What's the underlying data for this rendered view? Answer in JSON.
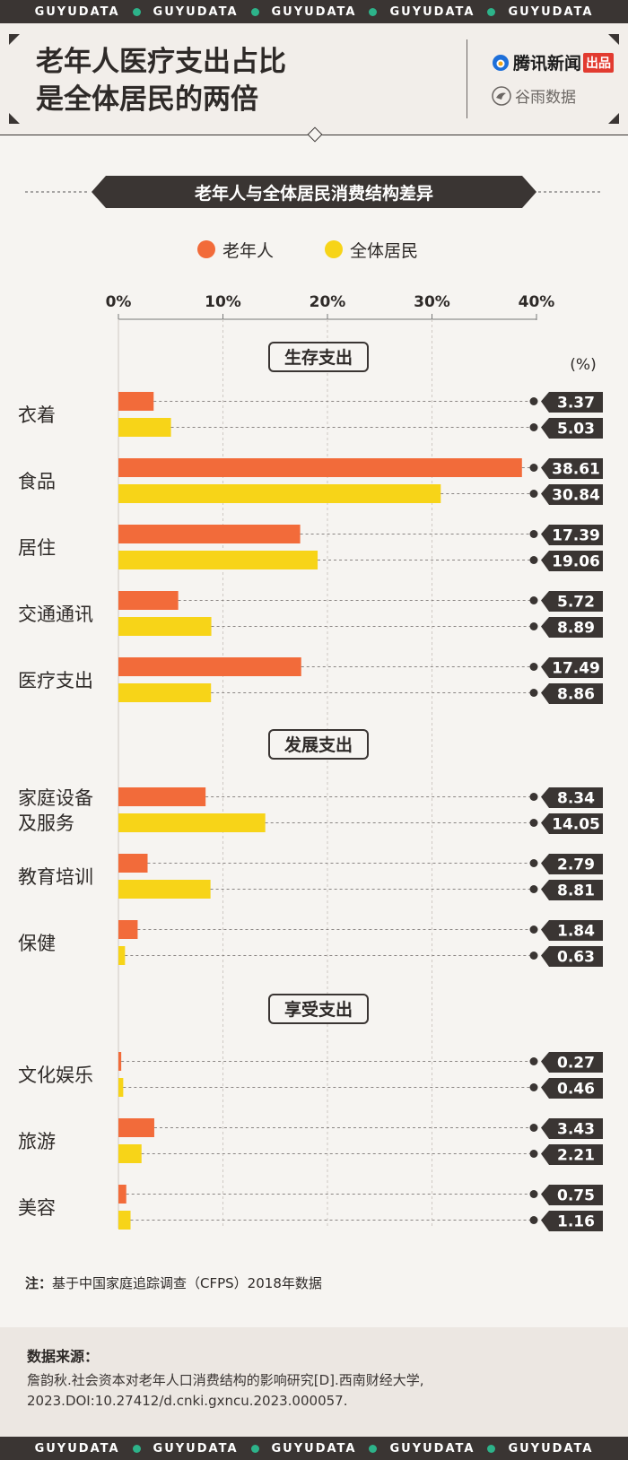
{
  "strip": {
    "word": "GUYUDATA"
  },
  "header": {
    "title_line1": "老年人医疗支出占比",
    "title_line2": "是全体居民的两倍",
    "brand_tencent": "腾讯新闻",
    "brand_tencent_tag": "出品",
    "brand_guyu": "谷雨数据"
  },
  "chart_data": {
    "type": "bar",
    "orientation": "horizontal",
    "title": "老年人与全体居民消费结构差异",
    "unit": "(%)",
    "xlim": [
      0,
      40
    ],
    "xticks": [
      "0%",
      "10%",
      "20%",
      "30%",
      "40%"
    ],
    "legend_placement": "top",
    "series": [
      {
        "name": "老年人",
        "color": "#f26b3a"
      },
      {
        "name": "全体居民",
        "color": "#f7d418"
      }
    ],
    "groups": [
      {
        "label": "生存支出",
        "categories": [
          {
            "label": "衣着",
            "elderly": 3.37,
            "all": 5.03
          },
          {
            "label": "食品",
            "elderly": 38.61,
            "all": 30.84
          },
          {
            "label": "居住",
            "elderly": 17.39,
            "all": 19.06
          },
          {
            "label": "交通通讯",
            "elderly": 5.72,
            "all": 8.89
          },
          {
            "label": "医疗支出",
            "elderly": 17.49,
            "all": 8.86
          }
        ]
      },
      {
        "label": "发展支出",
        "categories": [
          {
            "label": "家庭设备\n及服务",
            "elderly": 8.34,
            "all": 14.05
          },
          {
            "label": "教育培训",
            "elderly": 2.79,
            "all": 8.81
          },
          {
            "label": "保健",
            "elderly": 1.84,
            "all": 0.63
          }
        ]
      },
      {
        "label": "享受支出",
        "categories": [
          {
            "label": "文化娱乐",
            "elderly": 0.27,
            "all": 0.46
          },
          {
            "label": "旅游",
            "elderly": 3.43,
            "all": 2.21
          },
          {
            "label": "美容",
            "elderly": 0.75,
            "all": 1.16
          }
        ]
      }
    ]
  },
  "note": {
    "label": "注：",
    "text": "基于中国家庭追踪调查（CFPS）2018年数据"
  },
  "source": {
    "title": "数据来源：",
    "line1": "詹韵秋.社会资本对老年人口消费结构的影响研究[D].西南财经大学,",
    "line2": "2023.DOI:10.27412/d.cnki.gxncu.2023.000057."
  }
}
